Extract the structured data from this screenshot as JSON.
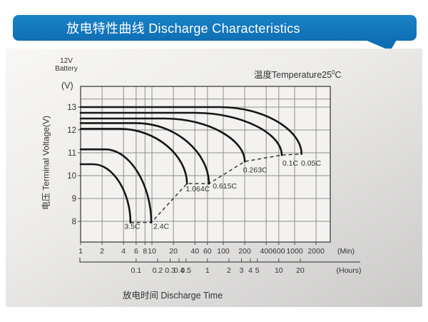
{
  "header": {
    "title": "放电特性曲线 Discharge Characteristics",
    "bg_color": "#1478BE",
    "text_color": "#FFFFFF"
  },
  "panel": {
    "battery_line1": "12V",
    "battery_line2": "Battery",
    "temperature_prefix": "温度Temperature25",
    "temperature_degree": "0",
    "temperature_unit": "C"
  },
  "chart_data": {
    "type": "line",
    "title": "放电特性曲线 Discharge Characteristics",
    "xlabel": "放电时间 Discharge Time",
    "ylabel": "电压 Terminal Voltage(V)",
    "y_corner_unit": "(V)",
    "x_scale": "log",
    "grid": true,
    "y_ticks": [
      8,
      9,
      10,
      11,
      12,
      13
    ],
    "y_extra_gridline": 13.35,
    "x_axis_minutes": {
      "ticks": [
        1,
        2,
        4,
        6,
        8,
        10,
        20,
        40,
        60,
        100,
        200,
        400,
        600,
        1000,
        2000
      ],
      "unit_label": "(Min)"
    },
    "x_axis_hours": {
      "ticks": [
        0.1,
        0.2,
        0.3,
        0.4,
        0.5,
        1,
        2,
        3,
        4,
        5,
        10,
        20
      ],
      "unit_label": "(Hours)"
    },
    "curve_color": "#161616",
    "grid_color": "#8e8e8e",
    "series": [
      {
        "name": "3.5C",
        "start_voltage": 10.5,
        "knee_minutes": 1.5,
        "end_minutes": 5,
        "end_voltage": 7.95,
        "label_at": [
          5.3,
          7.78
        ]
      },
      {
        "name": "2.4C",
        "start_voltage": 11.15,
        "knee_minutes": 2.2,
        "end_minutes": 9.8,
        "end_voltage": 7.95,
        "label_at": [
          13.5,
          7.78
        ]
      },
      {
        "name": "1.064C",
        "start_voltage": 12.05,
        "knee_minutes": 3.5,
        "end_minutes": 31,
        "end_voltage": 9.65,
        "label_at": [
          44,
          9.42
        ]
      },
      {
        "name": "0.615C",
        "start_voltage": 12.3,
        "knee_minutes": 6,
        "end_minutes": 63,
        "end_voltage": 9.65,
        "label_at": [
          105,
          9.55
        ]
      },
      {
        "name": "0.263C",
        "start_voltage": 12.5,
        "knee_minutes": 15,
        "end_minutes": 200,
        "end_voltage": 10.62,
        "label_at": [
          280,
          10.25
        ]
      },
      {
        "name": "0.1C",
        "start_voltage": 12.75,
        "knee_minutes": 40,
        "end_minutes": 660,
        "end_voltage": 10.9,
        "label_at": [
          870,
          10.55
        ]
      },
      {
        "name": "0.05C",
        "start_voltage": 13.0,
        "knee_minutes": 90,
        "end_minutes": 1250,
        "end_voltage": 10.95,
        "label_at": [
          1700,
          10.55
        ]
      }
    ],
    "cutoff_line_points": [
      [
        5,
        7.95
      ],
      [
        9.8,
        7.95
      ],
      [
        31,
        9.65
      ],
      [
        63,
        9.65
      ],
      [
        200,
        10.62
      ],
      [
        660,
        10.9
      ],
      [
        1250,
        10.95
      ]
    ]
  }
}
